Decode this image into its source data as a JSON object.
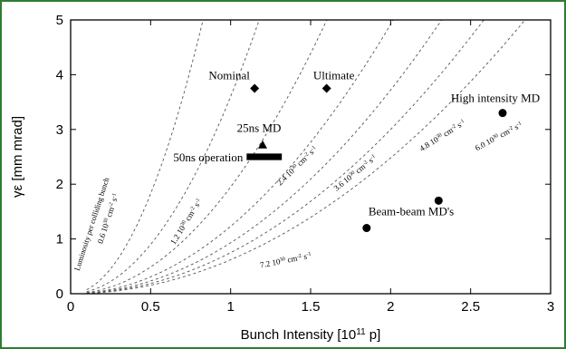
{
  "chart_data": {
    "type": "scatter",
    "xlabel": "Bunch Intensity [10",
    "xlabel_sup": "11",
    "xlabel_tail": " p]",
    "ylabel": "γε [mm mrad]",
    "xlim": [
      0,
      3
    ],
    "ylim": [
      0,
      5
    ],
    "x_ticks": [
      "0",
      "0.5",
      "1",
      "1.5",
      "2",
      "2.5",
      "3"
    ],
    "y_ticks": [
      "0",
      "1",
      "2",
      "3",
      "4",
      "5"
    ],
    "grid": false,
    "series": [
      {
        "label": "Nominal",
        "marker": "diamond",
        "x": 1.15,
        "y": 3.75
      },
      {
        "label": "Ultimate",
        "marker": "diamond",
        "x": 1.6,
        "y": 3.75
      },
      {
        "label": "25ns MD",
        "marker": "triangle",
        "x": 1.2,
        "y": 2.72
      },
      {
        "label": "High intensity MD",
        "marker": "circle",
        "x": 2.7,
        "y": 3.3
      },
      {
        "label": "Beam-beam MD's",
        "marker": "circle",
        "x": 1.85,
        "y": 1.2
      },
      {
        "label": "",
        "marker": "circle",
        "x": 2.3,
        "y": 1.7
      }
    ],
    "operation_region": {
      "label": "50ns operation",
      "x0": 1.1,
      "x1": 1.32,
      "y0": 2.44,
      "y1": 2.56
    },
    "luminosity_curves": [
      {
        "coef": "0.6",
        "k": 7.3
      },
      {
        "coef": "1.2",
        "k": 3.6
      },
      {
        "coef": "2.4",
        "k": 1.95
      },
      {
        "coef": "3.6",
        "k": 1.23
      },
      {
        "coef": "4.8",
        "k": 0.93
      },
      {
        "coef": "6.0",
        "k": 0.75
      },
      {
        "coef": "7.2",
        "k": 0.62
      }
    ],
    "curve_label_unit": "10",
    "curve_label_exp": "30",
    "curve_label_rest": " cm",
    "curve_label_exp2": "-2",
    "curve_label_s": " s",
    "curve_label_exp3": "-1",
    "curve_note": "Luminosity per colliding bunch"
  }
}
